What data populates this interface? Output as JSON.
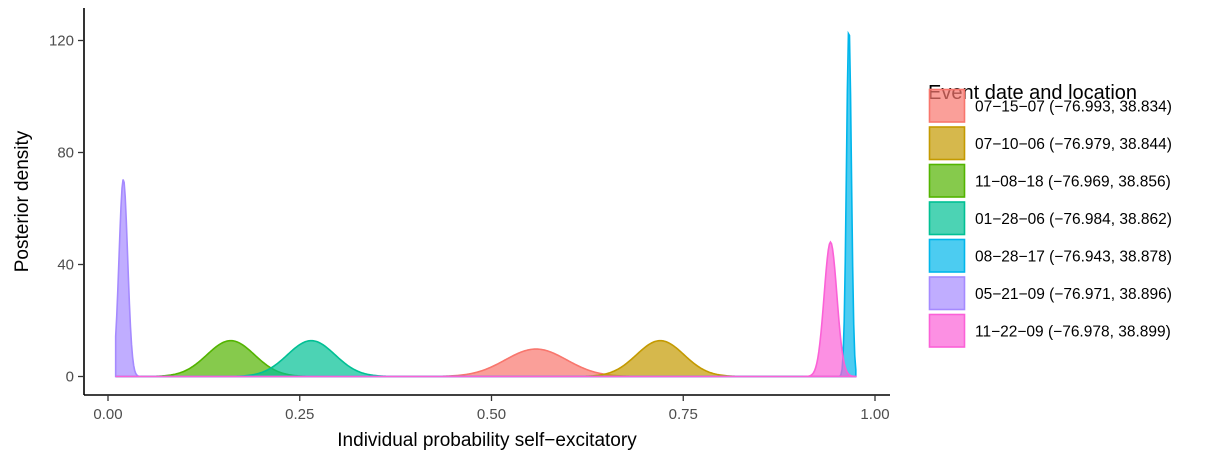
{
  "chart_data": {
    "type": "area",
    "xlabel": "Individual probability self−excitatory",
    "ylabel": "Posterior density",
    "xlim": [
      0,
      1
    ],
    "ylim": [
      0,
      130
    ],
    "xticks": [
      0.0,
      0.25,
      0.5,
      0.75,
      1.0
    ],
    "xtick_labels": [
      "0.00",
      "0.25",
      "0.50",
      "0.75",
      "1.00"
    ],
    "yticks": [
      0,
      40,
      80,
      120
    ],
    "ytick_labels": [
      "0",
      "40",
      "80",
      "120"
    ],
    "grid": false,
    "legend": {
      "title": "Event date and location",
      "position": "right"
    },
    "series": [
      {
        "name": "07−15−07 (−76.993, 38.834)",
        "peak_x": 0.558,
        "peak_density": 9.8,
        "sd": 0.04,
        "color": "#F8766D"
      },
      {
        "name": "07−10−06 (−76.979, 38.844)",
        "peak_x": 0.72,
        "peak_density": 12.8,
        "sd": 0.031,
        "color": "#C49A00"
      },
      {
        "name": "11−08−18 (−76.969, 38.856)",
        "peak_x": 0.16,
        "peak_density": 12.8,
        "sd": 0.031,
        "color": "#53B400"
      },
      {
        "name": "01−28−06 (−76.984, 38.862)",
        "peak_x": 0.265,
        "peak_density": 12.8,
        "sd": 0.031,
        "color": "#00C094"
      },
      {
        "name": "08−28−17 (−76.943, 38.878)",
        "peak_x": 0.966,
        "peak_density": 125,
        "sd": 0.0032,
        "color": "#00B6EB"
      },
      {
        "name": "05−21−09 (−76.971, 38.896)",
        "peak_x": 0.02,
        "peak_density": 70.5,
        "sd": 0.0056,
        "color": "#A58AFF"
      },
      {
        "name": "11−22−09 (−76.978, 38.899)",
        "peak_x": 0.942,
        "peak_density": 48,
        "sd": 0.0083,
        "color": "#FB61D7"
      }
    ]
  }
}
